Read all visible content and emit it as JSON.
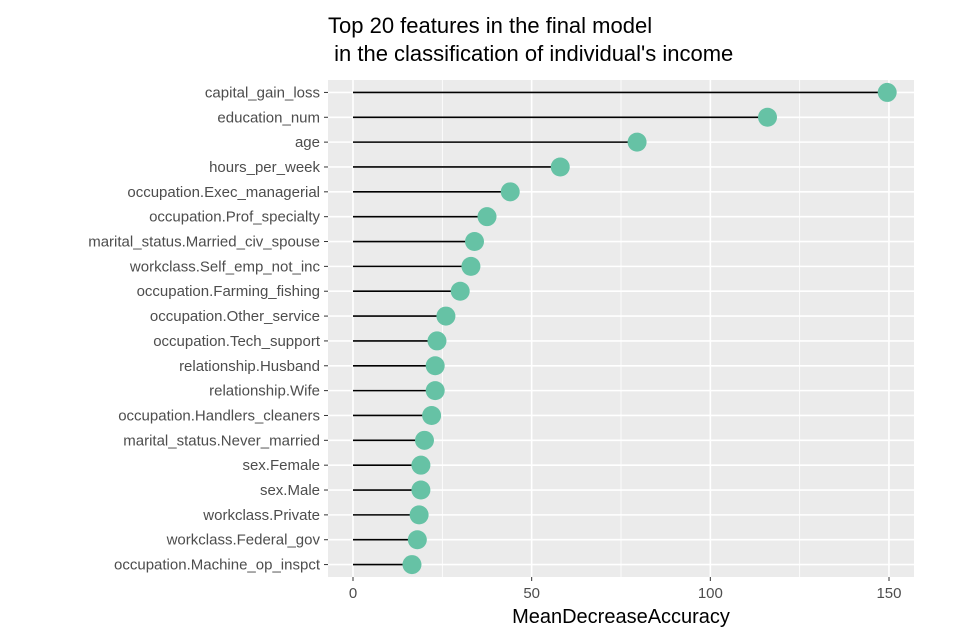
{
  "chart_data": {
    "type": "lollipop",
    "title": [
      "Top 20 features in the final model",
      " in the classification of individual's income"
    ],
    "xlabel": "MeanDecreaseAccuracy",
    "ylabel": "",
    "xlim": [
      -7,
      157
    ],
    "xticks": [
      0,
      50,
      100,
      150
    ],
    "grid": true,
    "colors": {
      "panel_background": "#ebebeb",
      "grid": "#ffffff",
      "point": "#66c2a5",
      "stem": "#000000"
    },
    "categories": [
      "capital_gain_loss",
      "education_num",
      "age",
      "hours_per_week",
      "occupation.Exec_managerial",
      "occupation.Prof_specialty",
      "marital_status.Married_civ_spouse",
      "workclass.Self_emp_not_inc",
      "occupation.Farming_fishing",
      "occupation.Other_service",
      "occupation.Tech_support",
      "relationship.Husband",
      "relationship.Wife",
      "occupation.Handlers_cleaners",
      "marital_status.Never_married",
      "sex.Female",
      "sex.Male",
      "workclass.Private",
      "workclass.Federal_gov",
      "occupation.Machine_op_inspct"
    ],
    "values": [
      149.5,
      116,
      79.5,
      58,
      44,
      37.5,
      34,
      33,
      30,
      26,
      23.5,
      23,
      23,
      22,
      20,
      19,
      19,
      18.5,
      18,
      16.5
    ]
  }
}
